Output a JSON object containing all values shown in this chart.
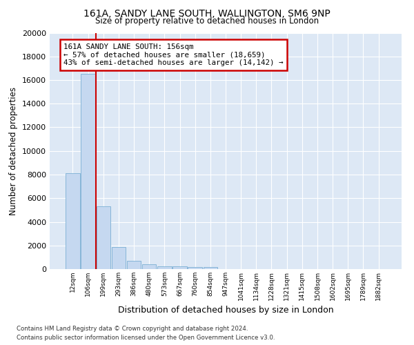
{
  "title": "161A, SANDY LANE SOUTH, WALLINGTON, SM6 9NP",
  "subtitle": "Size of property relative to detached houses in London",
  "xlabel": "Distribution of detached houses by size in London",
  "ylabel": "Number of detached properties",
  "bar_color": "#c5d8f0",
  "bar_edge_color": "#7aafd4",
  "background_color": "#dde8f5",
  "grid_color": "#ffffff",
  "annotation_line_color": "#cc0000",
  "annotation_box_color": "#cc0000",
  "annotation_text": "161A SANDY LANE SOUTH: 156sqm\n← 57% of detached houses are smaller (18,659)\n43% of semi-detached houses are larger (14,142) →",
  "categories": [
    "12sqm",
    "106sqm",
    "199sqm",
    "293sqm",
    "386sqm",
    "480sqm",
    "573sqm",
    "667sqm",
    "760sqm",
    "854sqm",
    "947sqm",
    "1041sqm",
    "1134sqm",
    "1228sqm",
    "1321sqm",
    "1415sqm",
    "1508sqm",
    "1602sqm",
    "1695sqm",
    "1789sqm",
    "1882sqm"
  ],
  "bar_heights": [
    8100,
    16500,
    5300,
    1850,
    700,
    380,
    260,
    215,
    175,
    150,
    0,
    0,
    0,
    0,
    0,
    0,
    0,
    0,
    0,
    0,
    0
  ],
  "ylim": [
    0,
    20000
  ],
  "yticks": [
    0,
    2000,
    4000,
    6000,
    8000,
    10000,
    12000,
    14000,
    16000,
    18000,
    20000
  ],
  "footer": "Contains HM Land Registry data © Crown copyright and database right 2024.\nContains public sector information licensed under the Open Government Licence v3.0."
}
